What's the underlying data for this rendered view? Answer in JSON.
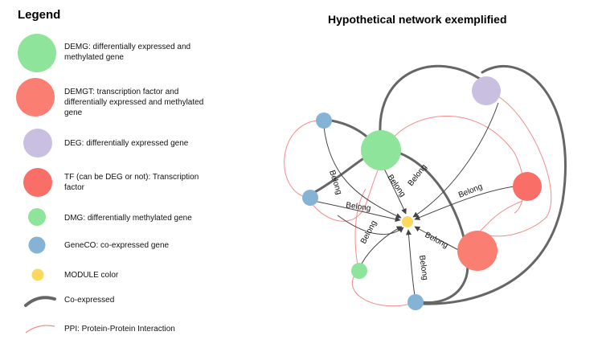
{
  "legend": {
    "title": "Legend",
    "items": [
      {
        "key": "demg",
        "label": "DEMG: differentially expressed and methylated gene",
        "color": "#8ee49a"
      },
      {
        "key": "demgt",
        "label": "DEMGT: transcription factor and differentially expressed and methylated gene",
        "color": "#fa7f72"
      },
      {
        "key": "deg",
        "label": "DEG: differentially expressed gene",
        "color": "#c9bfe0"
      },
      {
        "key": "tf",
        "label": "TF (can be DEG or not): Transcription factor",
        "color": "#f96e66"
      },
      {
        "key": "dmg",
        "label": "DMG: differentially methylated gene",
        "color": "#8ee49a"
      },
      {
        "key": "geneco",
        "label": "GeneCO: co-expressed gene",
        "color": "#85b3d6"
      },
      {
        "key": "module",
        "label": "MODULE color",
        "color": "#fdd85d"
      },
      {
        "key": "coexpressed",
        "label": "Co-expressed",
        "color": "#666666"
      },
      {
        "key": "ppi",
        "label": "PPI: Protein-Protein Interaction",
        "color": "#f28c8c"
      }
    ]
  },
  "network": {
    "title": "Hypothetical network exemplified",
    "edge_label": "Belong"
  }
}
